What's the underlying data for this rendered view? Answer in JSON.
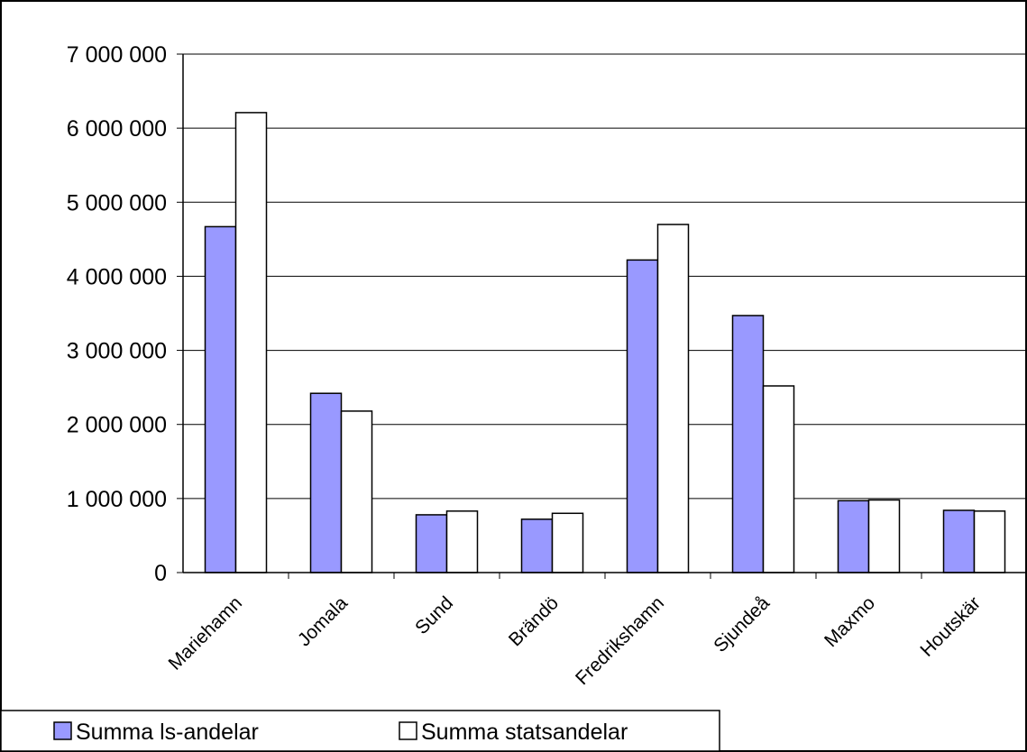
{
  "chart_data": {
    "type": "bar",
    "title": "",
    "xlabel": "",
    "ylabel": "",
    "categories": [
      "Mariehamn",
      "Jomala",
      "Sund",
      "Brändö",
      "Fredrikshamn",
      "Sjundeå",
      "Maxmo",
      "Houtskär"
    ],
    "series": [
      {
        "name": "Summa ls-andelar",
        "color": "#9999ff",
        "values": [
          4670000,
          2420000,
          780000,
          720000,
          4220000,
          3470000,
          970000,
          840000
        ]
      },
      {
        "name": "Summa statsandelar",
        "color": "#ffffff",
        "values": [
          6210000,
          2180000,
          830000,
          800000,
          4700000,
          2520000,
          980000,
          830000
        ]
      }
    ],
    "ylim": [
      0,
      7000000
    ],
    "yticks": [
      0,
      1000000,
      2000000,
      3000000,
      4000000,
      5000000,
      6000000,
      7000000
    ],
    "ytick_labels": [
      "0",
      "1 000 000",
      "2 000 000",
      "3 000 000",
      "4 000 000",
      "5 000 000",
      "6 000 000",
      "7 000 000"
    ],
    "grid": true,
    "legend_position": "bottom-left"
  }
}
